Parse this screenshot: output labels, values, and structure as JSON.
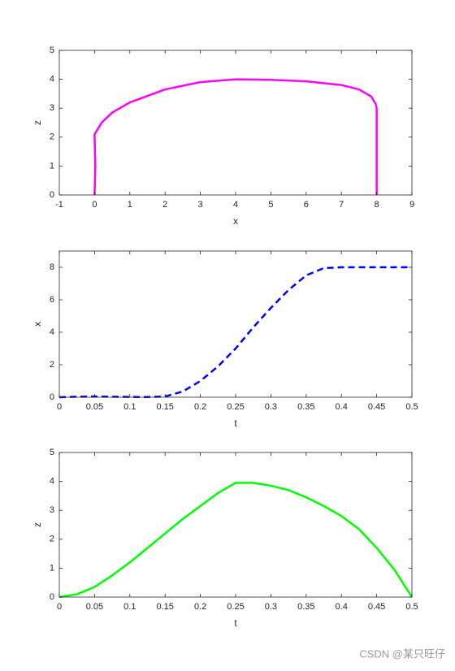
{
  "chart_data": [
    {
      "type": "line",
      "xlabel": "x",
      "ylabel": "z",
      "color": "#ff00ff",
      "line_style": "solid",
      "x": [
        0,
        0.02,
        0.0,
        0.2,
        0.5,
        1,
        2,
        3,
        4,
        5,
        6,
        7,
        7.5,
        7.85,
        7.97,
        8,
        8,
        8,
        8
      ],
      "values": [
        0,
        1,
        2.1,
        2.5,
        2.85,
        3.2,
        3.65,
        3.9,
        4.0,
        3.98,
        3.93,
        3.8,
        3.65,
        3.4,
        3.15,
        3,
        2,
        1,
        0
      ],
      "xlim": [
        -1,
        9
      ],
      "ylim": [
        0,
        5
      ],
      "xticks": [
        -1,
        0,
        1,
        2,
        3,
        4,
        5,
        6,
        7,
        8,
        9
      ],
      "yticks": [
        0,
        1,
        2,
        3,
        4,
        5
      ]
    },
    {
      "type": "line",
      "xlabel": "t",
      "ylabel": "x",
      "color": "#0000ff",
      "line_style": "dashed",
      "x": [
        0,
        0.025,
        0.05,
        0.075,
        0.1,
        0.125,
        0.15,
        0.175,
        0.2,
        0.225,
        0.25,
        0.275,
        0.3,
        0.325,
        0.35,
        0.375,
        0.4,
        0.425,
        0.45,
        0.475,
        0.5
      ],
      "values": [
        0,
        0.03,
        0.05,
        0.03,
        0.02,
        0.01,
        0.05,
        0.35,
        1.0,
        1.9,
        3.0,
        4.3,
        5.5,
        6.6,
        7.5,
        7.95,
        8,
        8,
        8,
        8,
        8
      ],
      "xlim": [
        0,
        0.5
      ],
      "ylim": [
        0,
        9
      ],
      "xticks": [
        0,
        0.05,
        0.1,
        0.15,
        0.2,
        0.25,
        0.3,
        0.35,
        0.4,
        0.45,
        0.5
      ],
      "yticks": [
        0,
        2,
        4,
        6,
        8
      ]
    },
    {
      "type": "line",
      "xlabel": "t",
      "ylabel": "z",
      "color": "#00ff00",
      "line_style": "solid",
      "x": [
        0,
        0.025,
        0.05,
        0.075,
        0.1,
        0.125,
        0.15,
        0.175,
        0.2,
        0.225,
        0.25,
        0.275,
        0.3,
        0.325,
        0.35,
        0.375,
        0.4,
        0.425,
        0.45,
        0.475,
        0.5
      ],
      "values": [
        0,
        0.1,
        0.35,
        0.75,
        1.2,
        1.7,
        2.2,
        2.7,
        3.15,
        3.6,
        3.95,
        3.95,
        3.85,
        3.7,
        3.45,
        3.15,
        2.8,
        2.35,
        1.7,
        0.95,
        0
      ],
      "xlim": [
        0,
        0.5
      ],
      "ylim": [
        0,
        5
      ],
      "xticks": [
        0,
        0.05,
        0.1,
        0.15,
        0.2,
        0.25,
        0.3,
        0.35,
        0.4,
        0.45,
        0.5
      ],
      "yticks": [
        0,
        1,
        2,
        3,
        4,
        5
      ]
    }
  ],
  "watermark": "CSDN @某只旺仔"
}
